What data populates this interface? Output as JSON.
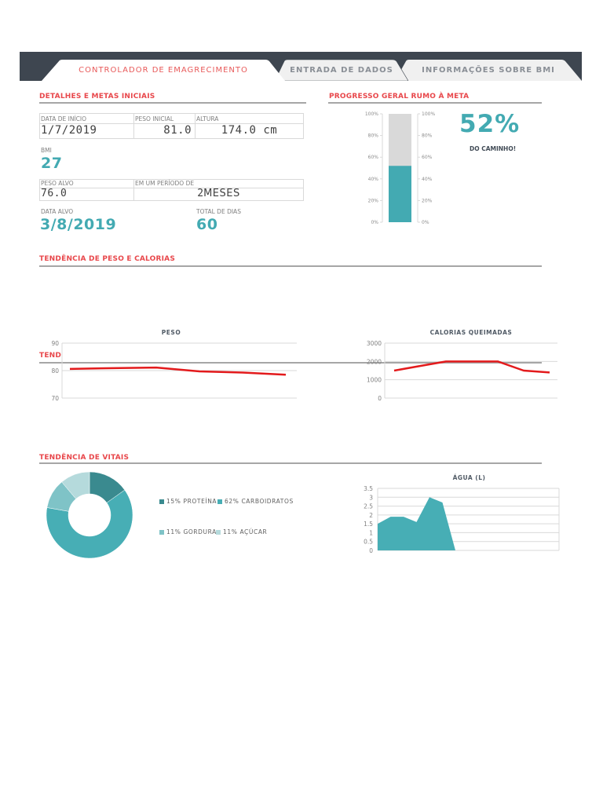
{
  "tabs": [
    {
      "label": "CONTROLADOR DE EMAGRECIMENTO",
      "active": true
    },
    {
      "label": "ENTRADA DE DADOS",
      "active": false
    },
    {
      "label": "INFORMAÇÕES SOBRE BMI",
      "active": false
    }
  ],
  "colors": {
    "accent_red": "#e8474b",
    "teal": "#43aab2",
    "tab_bar": "#3e4650",
    "line_red": "#e31a1c",
    "track_gray": "#d9d9d9"
  },
  "details": {
    "title": "DETALHES E METAS INICIAIS",
    "start_date_label": "DATA DE INÍCIO",
    "start_date": "1/7/2019",
    "start_weight_label": "PESO INICIAL",
    "start_weight": "81.0",
    "height_label": "ALTURA",
    "height": "174.0 cm",
    "bmi_label": "BMI",
    "bmi": "27",
    "target_weight_label": "PESO ALVO",
    "target_weight": "76.0",
    "period_label": "EM UM PERÍODO DE",
    "period_value": "2",
    "period_unit": "MESES",
    "target_date_label": "DATA ALVO",
    "target_date": "3/8/2019",
    "total_days_label": "TOTAL DE DIAS",
    "total_days": "60"
  },
  "progress": {
    "title": "PROGRESSO GERAL RUMO À META",
    "percent_text": "52%",
    "subtitle": "DO CAMINHO!",
    "axis_ticks": [
      "100%",
      "80%",
      "60%",
      "40%",
      "20%",
      "0%"
    ]
  },
  "trend": {
    "title": "TENDÊNCIA DE PESO E CALORIAS",
    "hidden_title_fragment": "TEND"
  },
  "vitals": {
    "title": "TENDÊNCIA DE VITAIS"
  },
  "chart_data": [
    {
      "id": "progress",
      "type": "bar",
      "title": "PROGRESSO GERAL RUMO À META",
      "categories": [
        "Progresso"
      ],
      "values": [
        52
      ],
      "max": 100,
      "ylim": [
        0,
        100
      ],
      "yticks": [
        "0%",
        "20%",
        "40%",
        "60%",
        "80%",
        "100%"
      ],
      "annotation": "52% DO CAMINHO!"
    },
    {
      "id": "peso",
      "type": "line",
      "title": "PESO",
      "x": [
        1,
        2,
        3,
        4,
        5,
        6
      ],
      "values": [
        80.6,
        80.9,
        81.1,
        79.7,
        79.3,
        78.5
      ],
      "ylim": [
        70,
        90
      ],
      "yticks": [
        "90",
        "80",
        "70"
      ],
      "grid": true,
      "legend": "none"
    },
    {
      "id": "calorias",
      "type": "line",
      "title": "CALORIAS QUEIMADAS",
      "x": [
        1,
        2,
        3,
        4,
        5,
        6,
        7
      ],
      "values": [
        1500,
        1750,
        2000,
        2000,
        2000,
        1500,
        1400
      ],
      "ylim": [
        0,
        3000
      ],
      "yticks": [
        "3000",
        "2000",
        "1000",
        "0"
      ],
      "grid": true,
      "legend": "none"
    },
    {
      "id": "nutrientes",
      "type": "pie",
      "title": "",
      "categories": [
        "PROTEÍNA",
        "CARBOIDRATOS",
        "GORDURA",
        "AÇÚCAR"
      ],
      "values": [
        15,
        62,
        11,
        11
      ],
      "labels": [
        "15% PROTEÍNA",
        "62% CARBOIDRATOS",
        "11% GORDURA",
        "11% AÇÚCAR"
      ],
      "colors": [
        "#3a8a8f",
        "#47aeb5",
        "#7fc3c7",
        "#b5dadc"
      ],
      "donut": true,
      "legend": "right"
    },
    {
      "id": "agua",
      "type": "area",
      "title": "ÁGUA (L)",
      "x": [
        1,
        2,
        3,
        4,
        5,
        6,
        7,
        8,
        9,
        10,
        11,
        12,
        13,
        14,
        15
      ],
      "values": [
        1.5,
        1.9,
        1.9,
        1.6,
        3.0,
        2.7,
        0,
        null,
        null,
        null,
        null,
        null,
        null,
        null,
        null
      ],
      "ylim": [
        0,
        3.5
      ],
      "yticks": [
        "3.5",
        "3",
        "2.5",
        "2",
        "1.5",
        "1",
        "0.5",
        "0"
      ],
      "grid": true,
      "legend": "none"
    }
  ]
}
